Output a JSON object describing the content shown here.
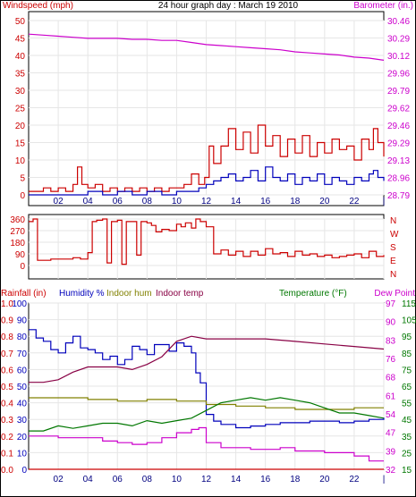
{
  "chart_data": [
    {
      "type": "line",
      "title": "24 hour graph day : March 19 2010",
      "left_label": "Windspeed (mph)",
      "right_label": "Barometer (in.)",
      "x_ticks": [
        "02",
        "04",
        "06",
        "08",
        "10",
        "12",
        "14",
        "16",
        "18",
        "20",
        "22",
        "|"
      ],
      "y_left_ticks": [
        "50",
        "45",
        "40",
        "35",
        "30",
        "25",
        "20",
        "15",
        "10",
        "5",
        "0"
      ],
      "y_right_ticks": [
        "30.46",
        "30.29",
        "30.12",
        "29.96",
        "29.79",
        "29.62",
        "29.46",
        "29.29",
        "29.13",
        "28.96",
        "28.79"
      ],
      "ylim_left": [
        0,
        50
      ],
      "ylim_right": [
        28.79,
        30.46
      ],
      "x_range": [
        0,
        24
      ],
      "colors": {
        "gust": "#cc0000",
        "average": "#0000bb",
        "barometer": "#cc00cc",
        "label_left": "#cc0000",
        "label_right": "#cc00cc"
      },
      "series": [
        {
          "key": "gust",
          "x": [
            0,
            0.5,
            1,
            1.5,
            2,
            2.5,
            3,
            3.3,
            3.6,
            4,
            4.5,
            5,
            5.5,
            6,
            6.5,
            7,
            7.5,
            8,
            8.5,
            9,
            9.5,
            10,
            10.5,
            11,
            11.5,
            11.9,
            12.2,
            12.5,
            13,
            13.5,
            14,
            14.5,
            15,
            15.5,
            16,
            16.5,
            17,
            17.5,
            18,
            18.5,
            19,
            19.5,
            20,
            20.5,
            21,
            21.5,
            22,
            22.5,
            23,
            23.3,
            23.6,
            24
          ],
          "values": [
            1,
            1,
            2,
            1,
            2,
            1,
            3,
            8,
            3,
            2,
            3,
            1,
            2,
            1,
            2,
            1,
            2,
            1,
            2,
            1,
            2,
            2,
            3,
            6,
            3,
            5,
            14,
            9,
            14,
            19,
            13,
            18,
            12,
            20,
            14,
            17,
            11,
            16,
            12,
            17,
            11,
            15,
            12,
            16,
            13,
            14,
            10,
            16,
            13,
            19,
            15,
            11
          ]
        },
        {
          "key": "average",
          "x": [
            0,
            1,
            2,
            3,
            4,
            5,
            6,
            7,
            8,
            9,
            10,
            11,
            11.5,
            12,
            12.5,
            13,
            13.5,
            14,
            14.5,
            15,
            15.5,
            16,
            16.5,
            17,
            17.5,
            18,
            18.5,
            19,
            19.5,
            20,
            20.5,
            21,
            21.5,
            22,
            22.5,
            23,
            23.3,
            23.6,
            24
          ],
          "values": [
            0,
            0,
            0,
            0,
            1,
            0,
            1,
            0,
            1,
            0,
            1,
            1,
            2,
            3,
            4,
            5,
            6,
            4,
            5,
            7,
            4,
            8,
            5,
            4,
            6,
            3,
            5,
            4,
            6,
            3,
            5,
            4,
            3,
            5,
            4,
            6,
            7,
            5,
            4
          ]
        },
        {
          "key": "barometer",
          "x": [
            0,
            1,
            2,
            3,
            4,
            5,
            6,
            7,
            8,
            9,
            10,
            11,
            12,
            13,
            14,
            15,
            16,
            17,
            18,
            19,
            20,
            21,
            22,
            23,
            24
          ],
          "values": [
            30.33,
            30.32,
            30.31,
            30.3,
            30.29,
            30.29,
            30.29,
            30.28,
            30.28,
            30.27,
            30.27,
            30.25,
            30.23,
            30.22,
            30.21,
            30.2,
            30.19,
            30.18,
            30.16,
            30.15,
            30.14,
            30.13,
            30.11,
            30.1,
            30.08
          ]
        }
      ]
    },
    {
      "type": "line",
      "left_label": "",
      "y_left_ticks": [
        "360",
        "270",
        "180",
        "90",
        "0"
      ],
      "y_right_ticks": [
        "N",
        "W",
        "S",
        "E",
        "N"
      ],
      "ylim_left": [
        0,
        360
      ],
      "x_range": [
        0,
        24
      ],
      "colors": {
        "direction": "#cc0000",
        "label_left": "#cc0000"
      },
      "series": [
        {
          "key": "direction",
          "x": [
            0,
            0.3,
            0.6,
            1,
            1.5,
            2,
            2.5,
            3,
            3.5,
            4,
            4.3,
            4.6,
            5,
            5.3,
            5.6,
            6,
            6.3,
            6.6,
            7,
            7.3,
            7.6,
            8,
            8.3,
            8.6,
            9,
            9.5,
            10,
            10.3,
            10.6,
            11,
            11.3,
            11.6,
            12,
            12.5,
            13,
            13.5,
            14,
            14.5,
            15,
            15.5,
            16,
            16.5,
            17,
            17.5,
            18,
            18.5,
            19,
            19.5,
            20,
            20.5,
            21,
            21.5,
            22,
            22.5,
            23,
            23.5,
            24
          ],
          "values": [
            340,
            360,
            40,
            40,
            50,
            50,
            50,
            60,
            50,
            100,
            340,
            350,
            360,
            20,
            340,
            350,
            10,
            340,
            340,
            80,
            340,
            330,
            310,
            260,
            280,
            270,
            320,
            300,
            330,
            290,
            360,
            340,
            300,
            90,
            120,
            80,
            110,
            70,
            110,
            80,
            130,
            90,
            100,
            70,
            110,
            80,
            90,
            70,
            80,
            60,
            70,
            80,
            90,
            60,
            110,
            70,
            80
          ]
        }
      ]
    },
    {
      "type": "line",
      "left_labels": [
        "Rainfall (in)",
        "Humidity %",
        "Indoor hum",
        "Indoor temp"
      ],
      "right_labels": [
        "Temperature (°F)",
        "Dew Point"
      ],
      "y_left_ticks": [
        "100",
        "90",
        "80",
        "70",
        "60",
        "50",
        "40",
        "30",
        "20",
        "10",
        "0"
      ],
      "y_left2_ticks": [
        "1.0",
        "0.9",
        "0.8",
        "0.7",
        "0.6",
        "0.5",
        "0.4",
        "0.3",
        "0.2",
        "0.1",
        "0.0"
      ],
      "y_right_ticks": [
        "97",
        "90",
        "83",
        "76",
        "68",
        "61",
        "54",
        "47",
        "39",
        "32"
      ],
      "y_right2_ticks": [
        "115",
        "105",
        "95",
        "85",
        "75",
        "65",
        "55",
        "45",
        "35",
        "25",
        "15"
      ],
      "ylim_left": [
        0,
        100
      ],
      "ylim_temp": [
        32,
        97
      ],
      "x_range": [
        0,
        24
      ],
      "colors": {
        "humidity": "#0000bb",
        "indoor_hum": "#808000",
        "indoor_temp": "#880044",
        "temperature": "#007700",
        "dew_point": "#cc00cc",
        "rainfall": "#cc0000",
        "label_rain": "#cc0000",
        "label_hum": "#0000bb",
        "label_ihum": "#808000",
        "label_itemp": "#880044",
        "label_temp": "#007700",
        "label_dew": "#cc00cc"
      },
      "series": [
        {
          "key": "humidity",
          "x": [
            0,
            0.5,
            1,
            1.5,
            2,
            2.5,
            3,
            3.5,
            4,
            4.5,
            5,
            5.5,
            6,
            6.5,
            7,
            7.5,
            8,
            8.5,
            9,
            9.5,
            10,
            10.5,
            11,
            11.3,
            11.6,
            12,
            12.5,
            13,
            14,
            15,
            16,
            17,
            18,
            19,
            20,
            21,
            22,
            23,
            24
          ],
          "values": [
            84,
            79,
            77,
            72,
            70,
            76,
            80,
            73,
            72,
            70,
            66,
            68,
            63,
            66,
            74,
            72,
            69,
            75,
            75,
            71,
            76,
            74,
            70,
            58,
            52,
            33,
            29,
            27,
            25,
            26,
            27,
            28,
            28,
            29,
            29,
            28,
            29,
            30,
            31
          ]
        },
        {
          "key": "indoor_hum",
          "x": [
            0,
            2,
            4,
            6,
            8,
            10,
            11,
            12,
            14,
            16,
            18,
            20,
            22,
            24
          ],
          "values": [
            43,
            43,
            42,
            41,
            42,
            41,
            41,
            39,
            38,
            37,
            36,
            36,
            37,
            37
          ]
        },
        {
          "key": "indoor_temp",
          "x": [
            0,
            1,
            2,
            3,
            4,
            5,
            6,
            7,
            8,
            9,
            10,
            11,
            12,
            14,
            16,
            18,
            20,
            22,
            24
          ],
          "values": [
            66,
            66,
            67,
            70,
            72,
            72,
            72,
            71,
            73,
            76,
            82,
            84,
            83,
            83,
            83,
            82,
            81,
            80,
            79
          ]
        },
        {
          "key": "temperature",
          "x": [
            0,
            1,
            2,
            3,
            4,
            5,
            6,
            7,
            8,
            9,
            10,
            11,
            12,
            13,
            14,
            15,
            16,
            17,
            18,
            19,
            20,
            21,
            22,
            23,
            24
          ],
          "values": [
            47,
            47,
            49,
            48,
            49,
            50,
            50,
            49,
            51,
            50,
            51,
            52,
            55,
            58,
            59,
            60,
            59,
            60,
            59,
            58,
            56,
            54,
            54,
            53,
            52
          ]
        },
        {
          "key": "dew_point",
          "x": [
            0,
            1,
            2,
            3,
            4,
            5,
            6,
            7,
            8,
            9,
            10,
            11,
            11.5,
            12,
            13,
            14,
            15,
            16,
            17,
            18,
            19,
            20,
            21,
            22,
            23,
            24
          ],
          "values": [
            20,
            20,
            19,
            19,
            19,
            17,
            16,
            15,
            16,
            19,
            22,
            24,
            25,
            16,
            13,
            13,
            12,
            12,
            13,
            11,
            11,
            10,
            10,
            8,
            5,
            5
          ]
        },
        {
          "key": "rainfall",
          "x": [
            0,
            24
          ],
          "values": [
            0,
            0
          ]
        }
      ]
    }
  ]
}
